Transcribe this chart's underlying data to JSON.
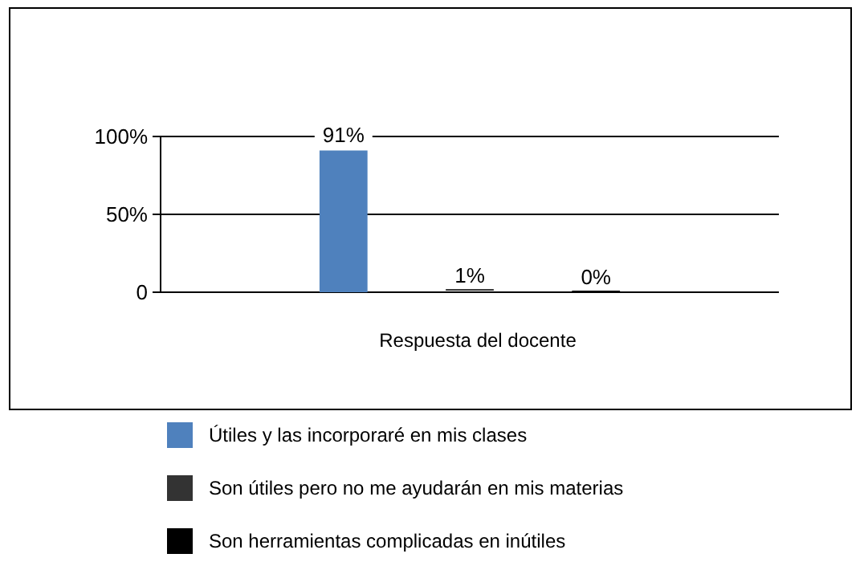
{
  "chart_data": {
    "type": "bar",
    "xlabel": "Respuesta del docente",
    "categories": [
      null
    ],
    "series": [
      {
        "name": "Útiles  y las incorporaré en mis clases",
        "color": "#4f81bd",
        "values": [
          91
        ],
        "value_labels": [
          "91%"
        ]
      },
      {
        "name": "Son útiles pero no me ayudarán en mis materias",
        "color": "#333333",
        "values": [
          1
        ],
        "value_labels": [
          "1%"
        ]
      },
      {
        "name": "Son herramientas complicadas en inútiles",
        "color": "#000000",
        "values": [
          0
        ],
        "value_labels": [
          "0%"
        ]
      }
    ],
    "ylim": [
      0,
      100
    ],
    "yticks": [
      0,
      {
        "value": 50,
        "label": "50%"
      },
      {
        "value": 100,
        "label": "100%"
      }
    ],
    "grid": "y",
    "legend": "bottom"
  }
}
